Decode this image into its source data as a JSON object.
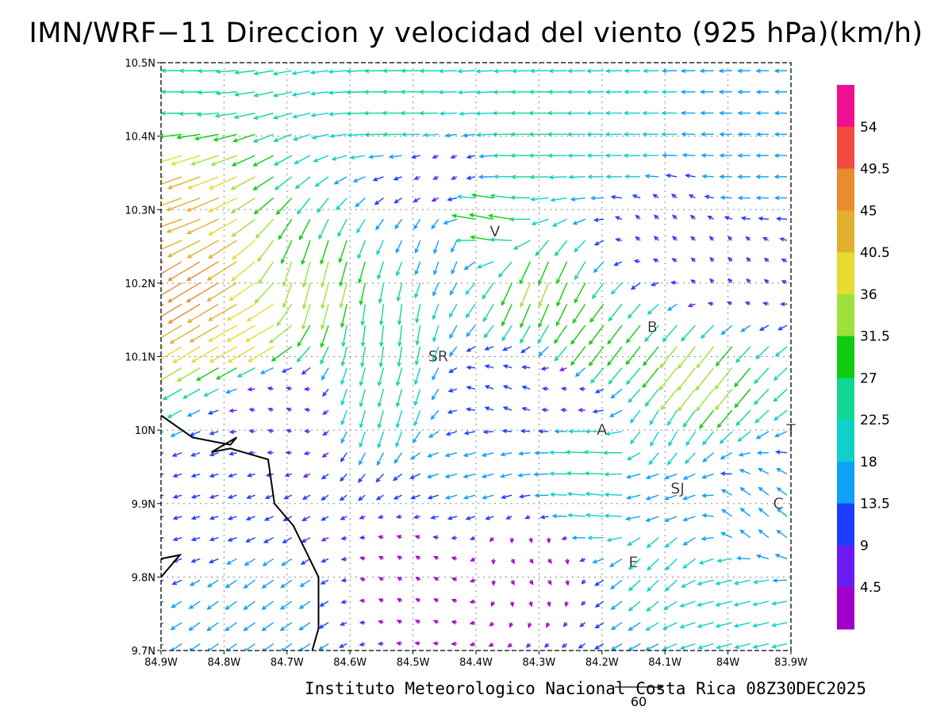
{
  "title": "IMN/WRF−11 Direccion y velocidad del viento (925 hPa)(km/h)",
  "footer": "Instituto Meteorologico Nacional Costa Rica 08Z30DEC2025",
  "reference_vector_label": "60",
  "map": {
    "lon_range": [
      -84.9,
      -83.9
    ],
    "lat_range": [
      9.7,
      10.5
    ],
    "x_ticks": [
      "84.9W",
      "84.8W",
      "84.7W",
      "84.6W",
      "84.5W",
      "84.4W",
      "84.3W",
      "84.2W",
      "84.1W",
      "84W",
      "83.9W"
    ],
    "y_ticks": [
      "9.7N",
      "9.8N",
      "9.9N",
      "10N",
      "10.1N",
      "10.2N",
      "10.3N",
      "10.4N",
      "10.5N"
    ],
    "grid": "dotted",
    "place_labels": [
      {
        "text": "V",
        "lon": -84.37,
        "lat": 10.27
      },
      {
        "text": "B",
        "lon": -84.12,
        "lat": 10.14
      },
      {
        "text": "SR",
        "lon": -84.46,
        "lat": 10.1
      },
      {
        "text": "A",
        "lon": -84.2,
        "lat": 10.0
      },
      {
        "text": "SJ",
        "lon": -84.08,
        "lat": 9.92
      },
      {
        "text": "C",
        "lon": -83.92,
        "lat": 9.9
      },
      {
        "text": "E",
        "lon": -84.15,
        "lat": 9.82
      },
      {
        "text": "T",
        "lon": -83.9,
        "lat": 10.0
      }
    ],
    "coastline": [
      [
        -84.9,
        10.02
      ],
      [
        -84.85,
        9.99
      ],
      [
        -84.79,
        9.98
      ],
      [
        -84.78,
        9.99
      ],
      [
        -84.82,
        9.97
      ],
      [
        -84.79,
        9.975
      ],
      [
        -84.73,
        9.96
      ],
      [
        -84.72,
        9.9
      ],
      [
        -84.69,
        9.87
      ],
      [
        -84.65,
        9.8
      ],
      [
        -84.65,
        9.73
      ],
      [
        -84.66,
        9.7
      ]
    ],
    "coastline_south": [
      [
        -84.9,
        9.8
      ],
      [
        -84.87,
        9.83
      ],
      [
        -84.9,
        9.825
      ]
    ]
  },
  "colorbar": {
    "labels": [
      "54",
      "49.5",
      "45",
      "40.5",
      "36",
      "31.5",
      "27",
      "22.5",
      "18",
      "13.5",
      "9",
      "4.5"
    ],
    "colors": [
      "#ee1090",
      "#f24a40",
      "#ec8a2e",
      "#e2b02c",
      "#e4dc30",
      "#a0e03a",
      "#10cc10",
      "#10d890",
      "#10d0cc",
      "#0fa0f8",
      "#1e3cff",
      "#6a1cf0",
      "#a000c8"
    ]
  },
  "wind_field": {
    "units": "km/h",
    "levels_kmh": [
      0,
      4.5,
      9,
      13.5,
      18,
      22.5,
      27,
      31.5,
      36,
      40.5,
      45,
      49.5,
      54
    ],
    "dominant_direction": "easterly (from E/NE)",
    "max_speed_kmh": 54,
    "regions": [
      {
        "lon": -84.9,
        "lat": 10.47,
        "u": -25,
        "v": 0
      },
      {
        "lon": -84.9,
        "lat": 10.3,
        "u": -42,
        "v": -15
      },
      {
        "lon": -84.84,
        "lat": 10.2,
        "u": -40,
        "v": -24
      },
      {
        "lon": -84.75,
        "lat": 10.15,
        "u": -35,
        "v": -20
      },
      {
        "lon": -84.65,
        "lat": 10.2,
        "u": -8,
        "v": -32
      },
      {
        "lon": -84.55,
        "lat": 10.15,
        "u": -3,
        "v": -26
      },
      {
        "lon": -84.45,
        "lat": 10.25,
        "u": -5,
        "v": -16
      },
      {
        "lon": -84.38,
        "lat": 10.28,
        "u": -30,
        "v": 6
      },
      {
        "lon": -84.3,
        "lat": 10.2,
        "u": -12,
        "v": -30
      },
      {
        "lon": -84.2,
        "lat": 10.12,
        "u": -18,
        "v": -24
      },
      {
        "lon": -84.05,
        "lat": 10.08,
        "u": -22,
        "v": -28
      },
      {
        "lon": -84.15,
        "lat": 10.38,
        "u": -20,
        "v": 0
      },
      {
        "lon": -84.3,
        "lat": 10.4,
        "u": -24,
        "v": 0
      },
      {
        "lon": -84.5,
        "lat": 10.43,
        "u": -24,
        "v": 0
      },
      {
        "lon": -83.95,
        "lat": 10.35,
        "u": -15,
        "v": 0
      },
      {
        "lon": -84.0,
        "lat": 10.22,
        "u": -4,
        "v": 5
      },
      {
        "lon": -84.1,
        "lat": 10.28,
        "u": -5,
        "v": 5
      },
      {
        "lon": -84.2,
        "lat": 9.97,
        "u": -24,
        "v": 1
      },
      {
        "lon": -84.1,
        "lat": 9.92,
        "u": -15,
        "v": -5
      },
      {
        "lon": -83.95,
        "lat": 9.88,
        "u": -12,
        "v": 10
      },
      {
        "lon": -84.0,
        "lat": 9.78,
        "u": -20,
        "v": -5
      },
      {
        "lon": -84.1,
        "lat": 9.82,
        "u": -14,
        "v": -14
      },
      {
        "lon": -84.4,
        "lat": 9.95,
        "u": -14,
        "v": -4
      },
      {
        "lon": -84.75,
        "lat": 9.75,
        "u": -14,
        "v": -10
      },
      {
        "lon": -84.85,
        "lat": 9.88,
        "u": -10,
        "v": -3
      },
      {
        "lon": -84.5,
        "lat": 9.8,
        "u": -3,
        "v": 2
      },
      {
        "lon": -84.3,
        "lat": 9.82,
        "u": 2,
        "v": -3
      },
      {
        "lon": -84.7,
        "lat": 10.03,
        "u": -6,
        "v": 2
      },
      {
        "lon": -84.55,
        "lat": 10.05,
        "u": -6,
        "v": -22
      },
      {
        "lon": -84.35,
        "lat": 10.05,
        "u": -10,
        "v": 4
      },
      {
        "lon": -84.25,
        "lat": 10.05,
        "u": -6,
        "v": 1
      },
      {
        "lon": -84.1,
        "lat": 10.0,
        "u": -10,
        "v": -18
      },
      {
        "lon": -84.2,
        "lat": 9.9,
        "u": -22,
        "v": 2
      },
      {
        "lon": -84.45,
        "lat": 10.35,
        "u": -6,
        "v": -3
      }
    ]
  }
}
